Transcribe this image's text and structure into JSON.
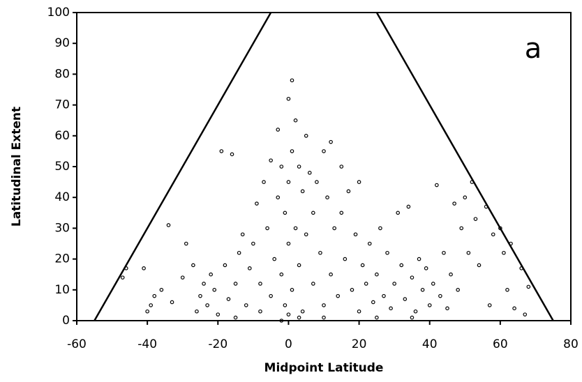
{
  "chart_data": {
    "type": "scatter",
    "xlabel": "Midpoint Latitude",
    "ylabel": "Latitudinal Extent",
    "annotation": "a",
    "xlim": [
      -60,
      80
    ],
    "xticks": [
      -60,
      -40,
      -20,
      0,
      20,
      40,
      60,
      80
    ],
    "ylim": [
      0,
      100
    ],
    "yticks": [
      0,
      10,
      20,
      30,
      40,
      50,
      60,
      70,
      80,
      90,
      100
    ],
    "lines": [
      {
        "x": [
          -55,
          -5
        ],
        "y": [
          0,
          100
        ]
      },
      {
        "x": [
          25,
          75
        ],
        "y": [
          100,
          0
        ]
      }
    ],
    "series": [
      {
        "color": "#000000",
        "x": [
          -47,
          -46,
          -41,
          -40,
          -39,
          -38,
          -36,
          -34,
          -33,
          -30,
          -29,
          -27,
          -26,
          -25,
          -24,
          -23,
          -22,
          -21,
          -20,
          -19,
          -18,
          -17,
          -16,
          -15,
          -14,
          -13,
          -12,
          -11,
          -10,
          -9,
          -8,
          -7,
          -6,
          -5,
          -5,
          -4,
          -3,
          -3,
          -2,
          -2,
          -1,
          -1,
          0,
          0,
          0,
          1,
          1,
          1,
          2,
          2,
          3,
          3,
          4,
          4,
          5,
          5,
          6,
          7,
          7,
          8,
          9,
          10,
          10,
          11,
          12,
          12,
          13,
          14,
          15,
          15,
          16,
          17,
          18,
          19,
          20,
          20,
          21,
          22,
          23,
          24,
          25,
          26,
          27,
          28,
          29,
          30,
          31,
          32,
          33,
          34,
          35,
          36,
          37,
          38,
          39,
          40,
          41,
          42,
          43,
          44,
          45,
          46,
          47,
          48,
          49,
          50,
          51,
          52,
          53,
          54,
          56,
          57,
          58,
          60,
          61,
          62,
          63,
          64,
          66,
          67,
          68,
          -2,
          0,
          3,
          -8,
          10,
          25,
          35,
          -15
        ],
        "y": [
          14,
          17,
          17,
          3,
          5,
          8,
          10,
          31,
          6,
          14,
          25,
          18,
          3,
          8,
          12,
          5,
          15,
          10,
          2,
          55,
          18,
          7,
          54,
          12,
          22,
          28,
          5,
          17,
          25,
          38,
          12,
          45,
          30,
          52,
          8,
          20,
          62,
          40,
          15,
          50,
          35,
          5,
          72,
          25,
          45,
          78,
          55,
          10,
          30,
          65,
          50,
          18,
          42,
          3,
          60,
          28,
          48,
          12,
          35,
          45,
          22,
          55,
          5,
          40,
          58,
          15,
          30,
          8,
          35,
          50,
          20,
          42,
          10,
          28,
          45,
          3,
          18,
          12,
          25,
          6,
          15,
          30,
          8,
          22,
          4,
          12,
          35,
          18,
          7,
          37,
          14,
          3,
          20,
          10,
          17,
          5,
          12,
          44,
          8,
          22,
          4,
          15,
          38,
          10,
          30,
          40,
          22,
          45,
          33,
          18,
          37,
          5,
          28,
          30,
          22,
          10,
          25,
          4,
          17,
          2,
          11,
          0,
          2,
          1,
          3,
          1,
          1,
          1,
          1
        ]
      }
    ]
  }
}
